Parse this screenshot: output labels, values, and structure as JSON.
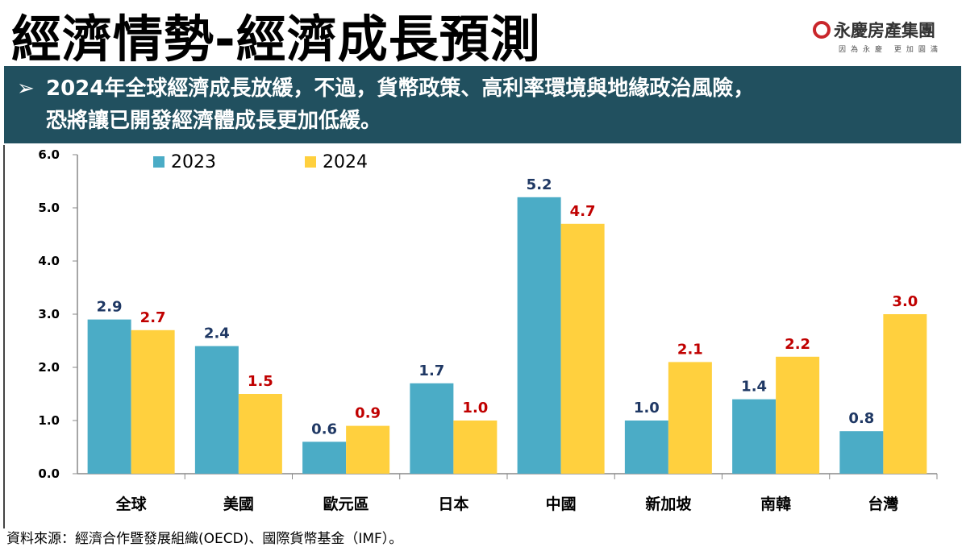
{
  "title": "經濟情勢-經濟成長預測",
  "logo": {
    "name": "永慶房產集團",
    "slogan": "因為永慶 更加圓滿",
    "color": "#c9262b"
  },
  "banner": {
    "icon": "arrow-bullet-icon",
    "line1": "2024年全球經濟成長放緩，不過，貨幣政策、高利率環境與地緣政治風險，",
    "line2": "恐將讓已開發經濟體成長更加低緩。",
    "background": "#21505f"
  },
  "source": "資料來源：經濟合作暨發展組織(OECD)、國際貨幣基金（IMF）。",
  "chart_data": {
    "type": "bar",
    "categories": [
      "全球",
      "美國",
      "歐元區",
      "日本",
      "中國",
      "新加坡",
      "南韓",
      "台灣"
    ],
    "series": [
      {
        "name": "2023",
        "values": [
          2.9,
          2.4,
          0.6,
          1.7,
          5.2,
          1.0,
          1.4,
          0.8
        ],
        "color": "#4bacc6",
        "label_color": "#1f3864"
      },
      {
        "name": "2024",
        "values": [
          2.7,
          1.5,
          0.9,
          1.0,
          4.7,
          2.1,
          2.2,
          3.0
        ],
        "color": "#ffd03e",
        "label_color": "#c00000"
      }
    ],
    "ylim": [
      0,
      6
    ],
    "yticks": [
      "0.0",
      "1.0",
      "2.0",
      "3.0",
      "4.0",
      "5.0",
      "6.0"
    ],
    "grid": false,
    "legend": "top-left"
  }
}
